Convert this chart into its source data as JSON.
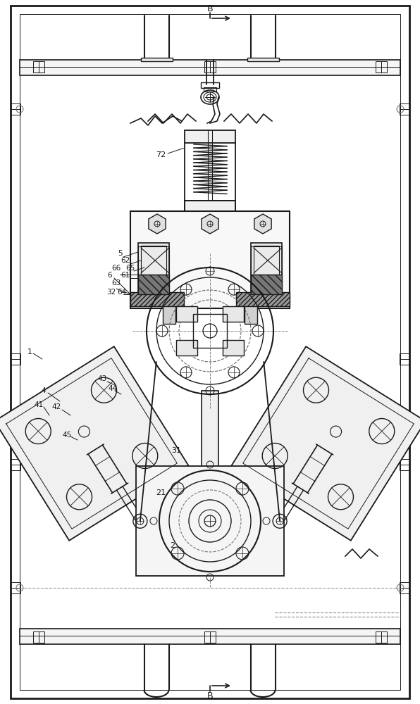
{
  "bg_color": "#ffffff",
  "lc": "#1a1a1a",
  "figsize": [
    5.96,
    10.0
  ],
  "dpi": 100
}
